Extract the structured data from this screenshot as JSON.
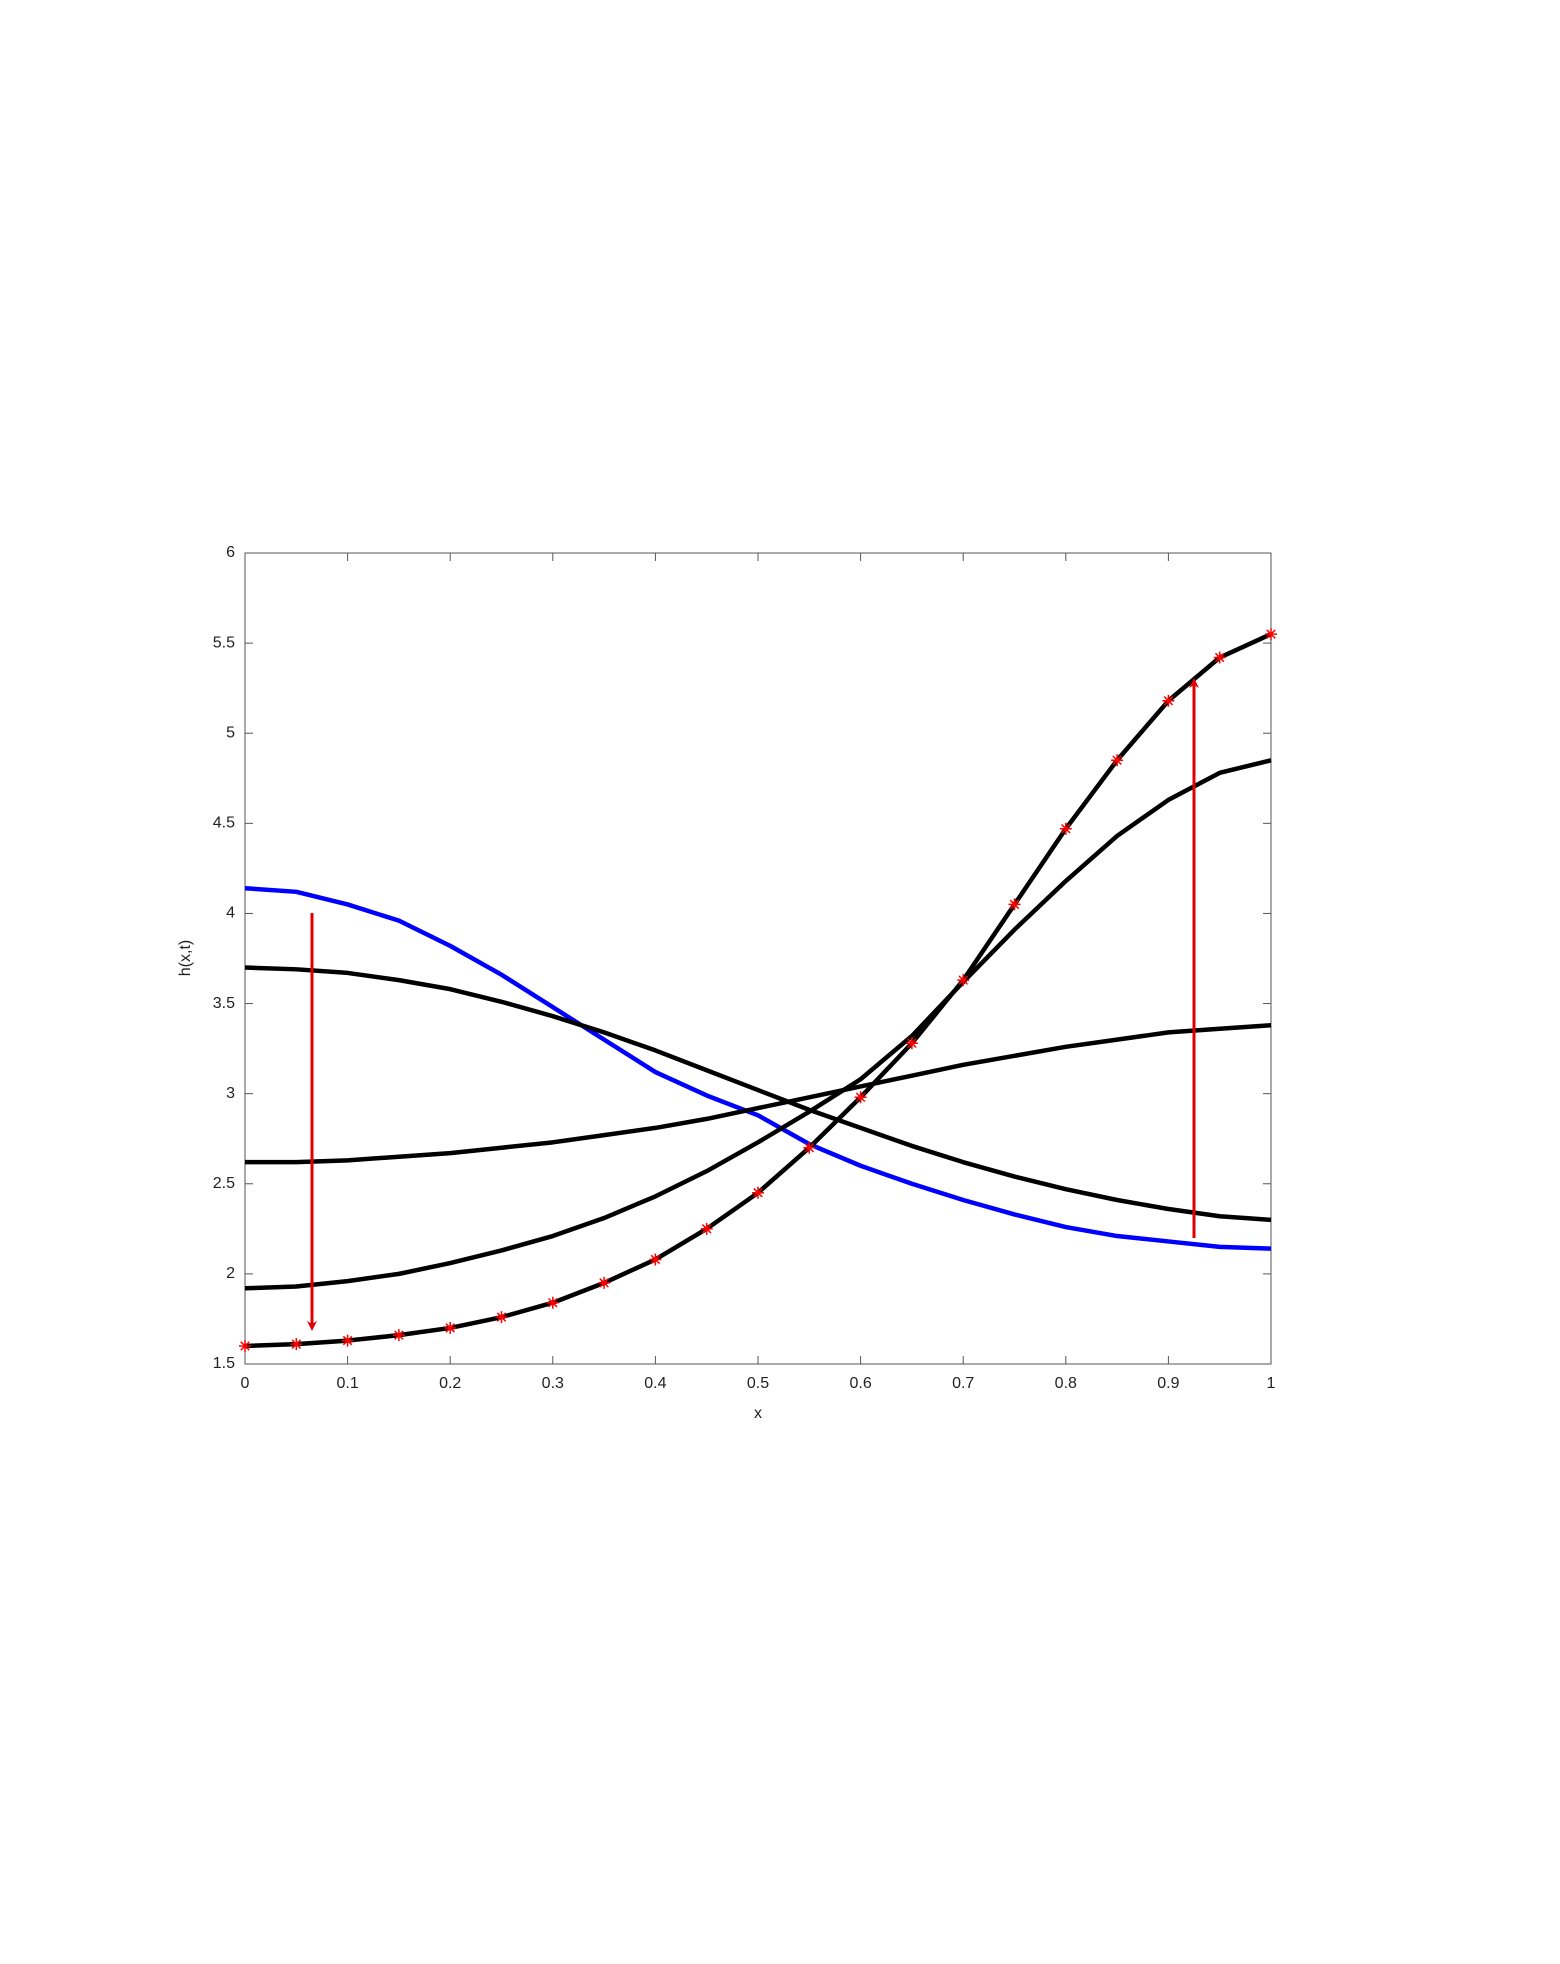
{
  "chart_data": {
    "type": "line",
    "xlabel": "x",
    "ylabel": "h(x,t)",
    "x": [
      0,
      0.05,
      0.1,
      0.15,
      0.2,
      0.25,
      0.3,
      0.35,
      0.4,
      0.45,
      0.5,
      0.55,
      0.6,
      0.65,
      0.7,
      0.75,
      0.8,
      0.85,
      0.9,
      0.95,
      1
    ],
    "series": [
      {
        "color": "#0000ff",
        "values": [
          4.14,
          4.12,
          4.05,
          3.96,
          3.82,
          3.66,
          3.48,
          3.3,
          3.12,
          2.99,
          2.88,
          2.72,
          2.6,
          2.5,
          2.41,
          2.33,
          2.26,
          2.21,
          2.18,
          2.15,
          2.14
        ]
      },
      {
        "color": "#000000",
        "values": [
          3.7,
          3.69,
          3.67,
          3.63,
          3.58,
          3.51,
          3.43,
          3.34,
          3.24,
          3.13,
          3.02,
          2.91,
          2.81,
          2.71,
          2.62,
          2.54,
          2.47,
          2.41,
          2.36,
          2.32,
          2.3
        ]
      },
      {
        "color": "#000000",
        "values": [
          2.62,
          2.62,
          2.63,
          2.65,
          2.67,
          2.7,
          2.73,
          2.77,
          2.81,
          2.86,
          2.92,
          2.98,
          3.04,
          3.1,
          3.16,
          3.21,
          3.26,
          3.3,
          3.34,
          3.36,
          3.38
        ]
      },
      {
        "color": "#000000",
        "values": [
          1.92,
          1.93,
          1.96,
          2.0,
          2.06,
          2.13,
          2.21,
          2.31,
          2.43,
          2.57,
          2.73,
          2.9,
          3.08,
          3.32,
          3.62,
          3.91,
          4.18,
          4.43,
          4.63,
          4.78,
          4.85
        ]
      },
      {
        "color": "#000000",
        "marker": "star",
        "marker_color": "#ff0000",
        "values": [
          1.6,
          1.61,
          1.63,
          1.66,
          1.7,
          1.76,
          1.84,
          1.95,
          2.08,
          2.25,
          2.45,
          2.7,
          2.98,
          3.28,
          3.63,
          4.05,
          4.47,
          4.85,
          5.18,
          5.42,
          5.55
        ]
      }
    ],
    "xlim": [
      0,
      1
    ],
    "xticks": [
      0,
      0.1,
      0.2,
      0.3,
      0.4,
      0.5,
      0.6,
      0.7,
      0.8,
      0.9,
      1
    ],
    "ylim": [
      1.5,
      6
    ],
    "yticks": [
      1.5,
      2,
      2.5,
      3,
      3.5,
      4,
      4.5,
      5,
      5.5,
      6
    ],
    "grid": false
  }
}
